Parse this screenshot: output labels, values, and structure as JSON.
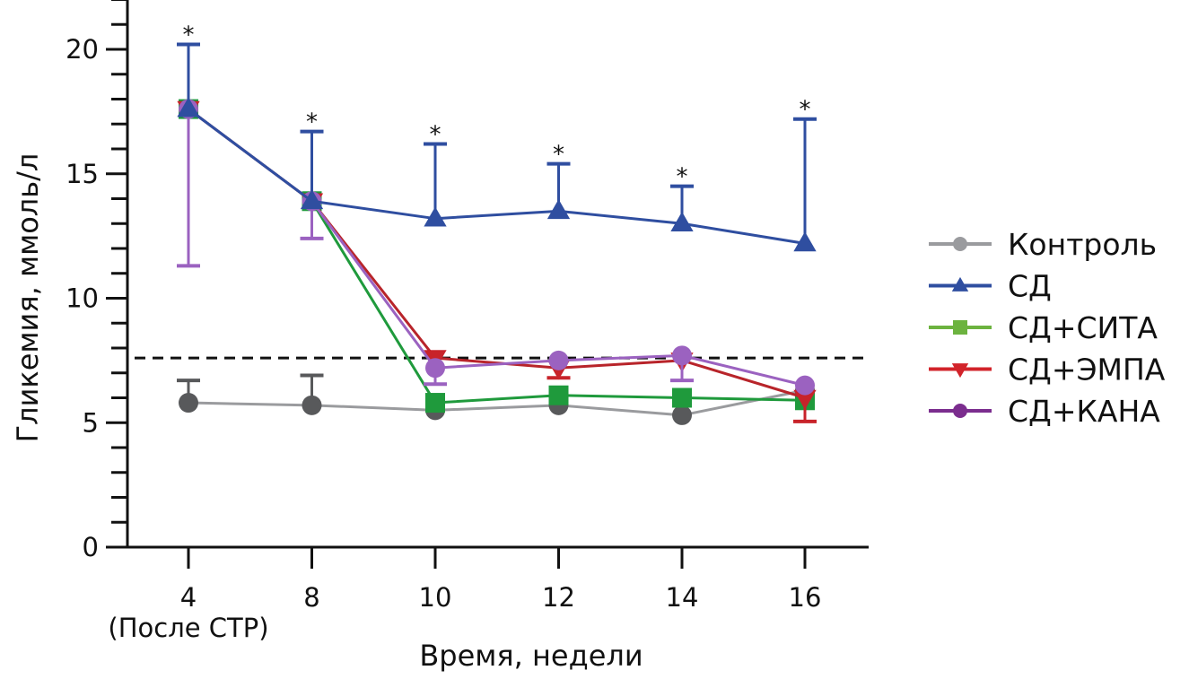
{
  "chart_data": {
    "type": "line",
    "title": "",
    "xlabel": "Время, недели",
    "ylabel": "Гликемия, ммоль/л",
    "categories": [
      "4",
      "8",
      "10",
      "12",
      "14",
      "16"
    ],
    "category_sublabels": [
      "(После СТР)",
      "",
      "",
      "",
      "",
      ""
    ],
    "ylim": [
      0,
      22
    ],
    "yticks": [
      0,
      5,
      10,
      15,
      20
    ],
    "y_minor_step": 1,
    "grid": false,
    "legend_position": "right",
    "reference_line": {
      "value": 7.6,
      "style": "dashed",
      "color": "#111111"
    },
    "significance_marks": [
      {
        "category": "4",
        "symbol": "*"
      },
      {
        "category": "8",
        "symbol": "*"
      },
      {
        "category": "10",
        "symbol": "*"
      },
      {
        "category": "12",
        "symbol": "*"
      },
      {
        "category": "14",
        "symbol": "*"
      },
      {
        "category": "16",
        "symbol": "*"
      }
    ],
    "series": [
      {
        "name": "Контроль",
        "marker": "circle",
        "color": "#9a9b9e",
        "marker_color": "#58595b",
        "values": [
          5.8,
          5.7,
          5.5,
          5.7,
          5.3,
          6.3
        ],
        "err_upper": [
          6.7,
          6.9,
          null,
          null,
          null,
          null
        ],
        "err_lower": [
          null,
          null,
          null,
          null,
          null,
          null
        ]
      },
      {
        "name": "СД",
        "marker": "triangle-up",
        "color": "#2f4ea0",
        "marker_color": "#2f4ea0",
        "values": [
          17.6,
          13.9,
          13.2,
          13.5,
          13.0,
          12.2
        ],
        "err_upper": [
          20.2,
          16.7,
          16.2,
          15.4,
          14.5,
          17.2
        ],
        "err_lower": [
          null,
          null,
          null,
          null,
          null,
          null
        ]
      },
      {
        "name": "СД+СИТА",
        "marker": "square",
        "color": "#1f9a3c",
        "legend_color": "#6cb33f",
        "marker_color": "#1f9a3c",
        "values": [
          17.6,
          13.9,
          5.8,
          6.1,
          6.0,
          5.9
        ],
        "err_upper": [
          null,
          null,
          null,
          null,
          null,
          null
        ],
        "err_lower": [
          null,
          null,
          null,
          null,
          null,
          null
        ]
      },
      {
        "name": "СД+ЭМПА",
        "marker": "triangle-down",
        "color": "#b8242a",
        "legend_color": "#d2232a",
        "marker_color": "#c8232a",
        "values": [
          17.6,
          13.9,
          7.6,
          7.2,
          7.5,
          6.0
        ],
        "err_upper": [
          null,
          null,
          null,
          null,
          null,
          null
        ],
        "err_lower": [
          null,
          null,
          null,
          6.8,
          null,
          5.05
        ]
      },
      {
        "name": "СД+КАНА",
        "marker": "circle",
        "color": "#9b62c0",
        "legend_color": "#7b2d8e",
        "marker_color": "#9b62c0",
        "values": [
          17.6,
          13.9,
          7.2,
          7.5,
          7.7,
          6.5
        ],
        "err_upper": [
          null,
          null,
          null,
          null,
          null,
          null
        ],
        "err_lower": [
          11.3,
          12.4,
          6.55,
          null,
          6.7,
          null
        ]
      }
    ]
  }
}
